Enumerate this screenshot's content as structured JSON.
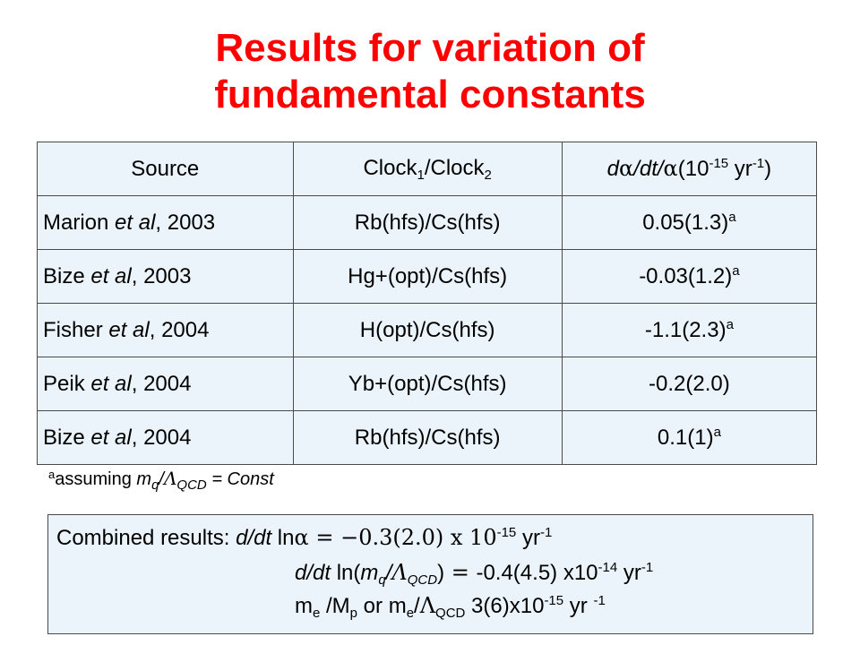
{
  "title": {
    "line1": "Results for variation of",
    "line2": "fundamental constants"
  },
  "table": {
    "headers": {
      "source": "Source",
      "clock_a": "Clock",
      "clock_a_sub": "1",
      "clock_sep": "/Clock",
      "clock_b_sub": "2",
      "rate_d": "d",
      "rate_alpha": "α",
      "rate_mid": "/dt/",
      "rate_alpha2": "α",
      "rate_open": "(10",
      "rate_exp": "-15",
      "rate_unit": " yr",
      "rate_unit_exp": "-1",
      "rate_close": ")"
    },
    "rows": [
      {
        "author": "Marion",
        "etal": "et al",
        "year": "2003",
        "sep": ", ",
        "clocks": "Rb(hfs)/Cs(hfs)",
        "value": "0.05(1.3)",
        "note": "a"
      },
      {
        "author": "Bize",
        "etal": "et al",
        "year": "2003",
        "sep": ", ",
        "clocks": "Hg+(opt)/Cs(hfs)",
        "value": "-0.03(1.2)",
        "note": "a"
      },
      {
        "author": "Fisher",
        "etal": "et al",
        "year": "2004",
        "sep": ", ",
        "clocks": "H(opt)/Cs(hfs)",
        "value": "-1.1(2.3)",
        "note": "a"
      },
      {
        "author": "Peik",
        "etal": "et al",
        "year": "2004",
        "sep": ", ",
        "clocks": "Yb+(opt)/Cs(hfs)",
        "value": "-0.2(2.0)",
        "note": ""
      },
      {
        "author": "Bize",
        "etal": "et al",
        "year": "2004",
        "sep": ", ",
        "clocks": "Rb(hfs)/Cs(hfs)",
        "value": "0.1(1)",
        "note": "a"
      }
    ]
  },
  "footnote": {
    "mark": "a",
    "text": "assuming ",
    "m": "m",
    "q": "q",
    "slash": "/",
    "lambda": "Λ",
    "qcd": "QCD",
    "rest": " = Const"
  },
  "combined": {
    "line1": {
      "label": "Combined results: ",
      "expr": "d/dt",
      "ln": " ln",
      "alpha": "α",
      "eq": " = −",
      "value": "0.3(2.0) x 10",
      "exp": "-15",
      "unit": " yr",
      "unit_exp": "-1"
    },
    "line2": {
      "expr": "d/dt",
      "ln": " ln(",
      "m": "m",
      "q": "q",
      "slash": "/",
      "lambda": "Λ",
      "qcd": "QCD",
      "close": ")",
      "eq": " = ",
      "value": "-0.4(4.5) x10",
      "exp": "-14",
      "unit": "  yr",
      "unit_exp": "-1"
    },
    "line3": {
      "m1": "m",
      "e1": "e",
      "slash1": " /M",
      "p": "p",
      "or": "  or  m",
      "e2": "e",
      "slash2": "/",
      "lambda": "Λ",
      "qcd": "QCD",
      "value": "   3(6)x10",
      "exp": "-15",
      "unit": " yr ",
      "unit_exp": "-1"
    }
  }
}
